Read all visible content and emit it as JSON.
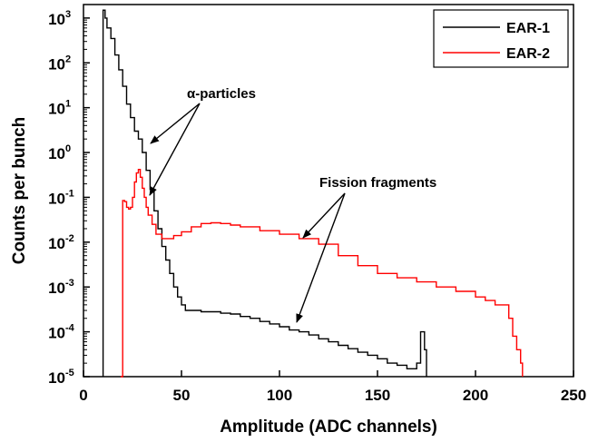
{
  "chart_data": {
    "type": "line",
    "title": "",
    "xlabel": "Amplitude (ADC channels)",
    "ylabel": "Counts per bunch",
    "xlim": [
      0,
      250
    ],
    "ylim": [
      1e-05,
      2000
    ],
    "yscale": "log",
    "x_ticks": [
      "0",
      "50",
      "100",
      "150",
      "200",
      "250"
    ],
    "y_ticks": [
      {
        "base": "10",
        "exp": "3"
      },
      {
        "base": "10",
        "exp": "2"
      },
      {
        "base": "10",
        "exp": "1"
      },
      {
        "base": "10",
        "exp": "0"
      },
      {
        "base": "10",
        "exp": "-1"
      },
      {
        "base": "10",
        "exp": "-2"
      },
      {
        "base": "10",
        "exp": "-3"
      },
      {
        "base": "10",
        "exp": "-4"
      },
      {
        "base": "10",
        "exp": "-5"
      }
    ],
    "legend_position": "top-right",
    "series": [
      {
        "name": "EAR-1",
        "color": "#000000",
        "x": [
          10,
          11,
          12,
          14,
          16,
          18,
          20,
          22,
          24,
          26,
          28,
          30,
          32,
          34,
          36,
          38,
          40,
          42,
          44,
          46,
          48,
          50,
          52,
          55,
          60,
          65,
          70,
          75,
          80,
          85,
          90,
          95,
          100,
          105,
          110,
          115,
          120,
          125,
          130,
          135,
          140,
          145,
          150,
          155,
          160,
          165,
          170,
          172,
          174,
          175
        ],
        "y": [
          1500,
          1000,
          600,
          350,
          150,
          70,
          30,
          12,
          6,
          3,
          2,
          1,
          0.4,
          0.15,
          0.05,
          0.02,
          0.008,
          0.004,
          0.002,
          0.001,
          0.0006,
          0.0004,
          0.0003,
          0.0003,
          0.00028,
          0.00028,
          0.00026,
          0.00025,
          0.00022,
          0.0002,
          0.00017,
          0.00015,
          0.00013,
          0.00011,
          0.0001,
          8.5e-05,
          7e-05,
          6e-05,
          5e-05,
          4.2e-05,
          3.5e-05,
          3e-05,
          2.5e-05,
          2e-05,
          1.8e-05,
          1.5e-05,
          2e-05,
          0.0001,
          4e-05,
          1e-05
        ]
      },
      {
        "name": "EAR-2",
        "color": "#ff0000",
        "x": [
          19,
          20,
          21,
          22,
          23,
          24,
          25,
          26,
          27,
          28,
          29,
          30,
          31,
          32,
          33,
          35,
          37,
          40,
          43,
          46,
          50,
          55,
          60,
          65,
          70,
          75,
          80,
          90,
          100,
          110,
          120,
          130,
          140,
          150,
          160,
          170,
          180,
          190,
          200,
          205,
          210,
          215,
          217,
          219,
          221,
          223,
          224
        ],
        "y": [
          1e-05,
          0.085,
          0.08,
          0.06,
          0.055,
          0.06,
          0.1,
          0.22,
          0.35,
          0.42,
          0.28,
          0.16,
          0.1,
          0.06,
          0.04,
          0.025,
          0.015,
          0.012,
          0.012,
          0.014,
          0.017,
          0.022,
          0.026,
          0.027,
          0.026,
          0.024,
          0.022,
          0.018,
          0.015,
          0.012,
          0.009,
          0.005,
          0.003,
          0.002,
          0.0016,
          0.0013,
          0.001,
          0.0008,
          0.0006,
          0.0005,
          0.0004,
          0.0004,
          0.0002,
          8e-05,
          4e-05,
          2e-05,
          1e-05
        ]
      }
    ],
    "annotations": [
      {
        "text": "α-particles"
      },
      {
        "text": "Fission fragments"
      }
    ]
  }
}
